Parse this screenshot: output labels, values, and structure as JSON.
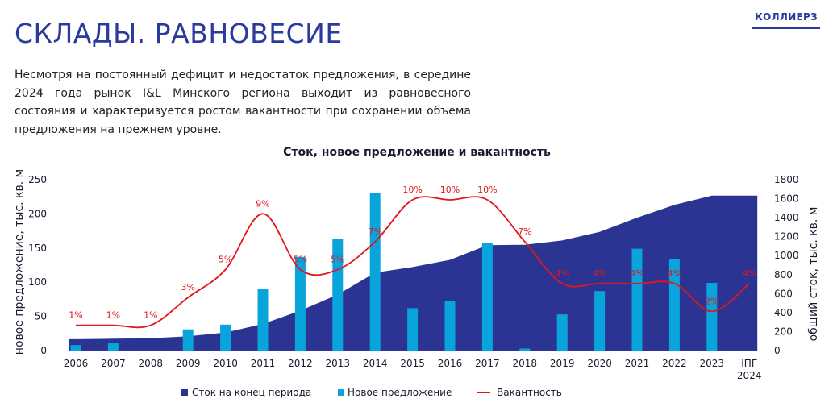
{
  "header": {
    "title": "СКЛАДЫ. РАВНОВЕСИЕ",
    "logo_text": "КОЛЛИЕРЗ"
  },
  "intro": {
    "text": "Несмотря на постоянный дефицит и недостаток предложения, в середине 2024 года рынок I&L Минского региона выходит из равновесного состояния и характеризуется ростом вакантности при сохранении объема предложения на прежнем уровне."
  },
  "colors": {
    "stock": "#2b3493",
    "new_supply": "#0aa4dc",
    "vacancy": "#e3151c",
    "title": "#2b3a9e"
  },
  "chart_data": {
    "type": "bar",
    "title": "Сток, новое предложение и вакантность",
    "categories": [
      "2006",
      "2007",
      "2008",
      "2009",
      "2010",
      "2011",
      "2012",
      "2013",
      "2014",
      "2015",
      "2016",
      "2017",
      "2018",
      "2019",
      "2020",
      "2021",
      "2022",
      "2023",
      "IПГ 2024"
    ],
    "ylabel_left": "новое предложение, тыс. кв. м",
    "ylabel_right": "общий сток, тыс. кв. м",
    "ylim_left": [
      0,
      250
    ],
    "yticks_left": [
      0,
      50,
      100,
      150,
      200,
      250
    ],
    "ylim_right": [
      0,
      1800
    ],
    "yticks_right": [
      0,
      200,
      400,
      600,
      800,
      1000,
      1200,
      1400,
      1600,
      1800
    ],
    "series": [
      {
        "name": "Сток на конец периода",
        "type": "area",
        "axis": "right",
        "values": [
          120,
          125,
          130,
          150,
          190,
          280,
          420,
          590,
          820,
          880,
          955,
          1110,
          1115,
          1160,
          1250,
          1400,
          1535,
          1632,
          1632
        ]
      },
      {
        "name": "Новое предложение",
        "type": "bar",
        "axis": "left",
        "values": [
          8,
          11,
          0,
          31,
          38,
          90,
          137,
          163,
          230,
          62,
          72,
          158,
          3,
          53,
          87,
          149,
          134,
          99,
          0
        ]
      },
      {
        "name": "Вакантность",
        "type": "line",
        "axis": "none",
        "values": [
          1,
          1,
          1,
          3,
          5,
          9,
          5,
          5,
          7,
          10,
          10,
          10,
          7,
          4,
          4,
          4,
          4,
          2,
          4
        ],
        "labels": [
          "1%",
          "1%",
          "1%",
          "3%",
          "5%",
          "9%",
          "5%",
          "5%",
          "7%",
          "10%",
          "10%",
          "10%",
          "7%",
          "4%",
          "4%",
          "4%",
          "4%",
          "2%",
          "4%"
        ]
      }
    ],
    "legend_position": "bottom",
    "grid": false
  }
}
